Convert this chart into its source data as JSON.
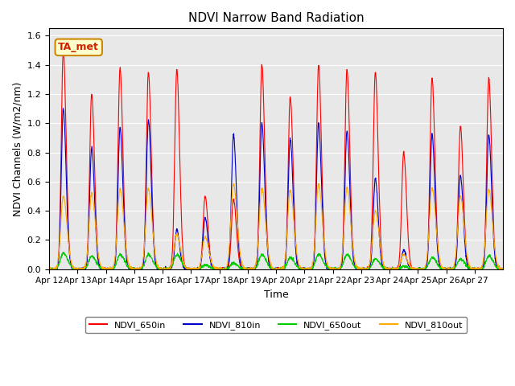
{
  "title": "NDVI Narrow Band Radiation",
  "xlabel": "Time",
  "ylabel": "NDVI Channels (W/m2/nm)",
  "ylim": [
    0,
    1.65
  ],
  "yticks": [
    0.0,
    0.2,
    0.4,
    0.6,
    0.8,
    1.0,
    1.2,
    1.4,
    1.6
  ],
  "xtick_labels": [
    "Apr 12",
    "Apr 13",
    "Apr 14",
    "Apr 15",
    "Apr 16",
    "Apr 17",
    "Apr 18",
    "Apr 19",
    "Apr 20",
    "Apr 21",
    "Apr 22",
    "Apr 23",
    "Apr 24",
    "Apr 25",
    "Apr 26",
    "Apr 27"
  ],
  "colors": {
    "NDVI_650in": "#ff0000",
    "NDVI_810in": "#0000cc",
    "NDVI_650out": "#00cc00",
    "NDVI_810out": "#ffaa00"
  },
  "annotation_text": "TA_met",
  "annotation_color": "#cc2200",
  "background_color": "#e8e8e8",
  "n_days": 16,
  "points_per_day": 144,
  "peaks_650in": [
    1.5,
    1.2,
    1.38,
    1.35,
    1.37,
    0.5,
    0.48,
    1.4,
    1.18,
    1.4,
    1.37,
    1.35,
    0.8,
    1.31,
    0.98,
    1.31
  ],
  "peaks_810in": [
    1.1,
    0.83,
    0.97,
    1.02,
    0.27,
    0.35,
    0.92,
    1.0,
    0.89,
    1.0,
    0.95,
    0.62,
    0.13,
    0.92,
    0.64,
    0.92
  ],
  "peaks_650out": [
    0.11,
    0.09,
    0.1,
    0.1,
    0.1,
    0.03,
    0.04,
    0.1,
    0.08,
    0.1,
    0.1,
    0.07,
    0.02,
    0.08,
    0.07,
    0.09
  ],
  "peaks_810out": [
    0.5,
    0.52,
    0.55,
    0.55,
    0.24,
    0.22,
    0.58,
    0.55,
    0.54,
    0.58,
    0.56,
    0.4,
    0.1,
    0.56,
    0.5,
    0.55
  ]
}
